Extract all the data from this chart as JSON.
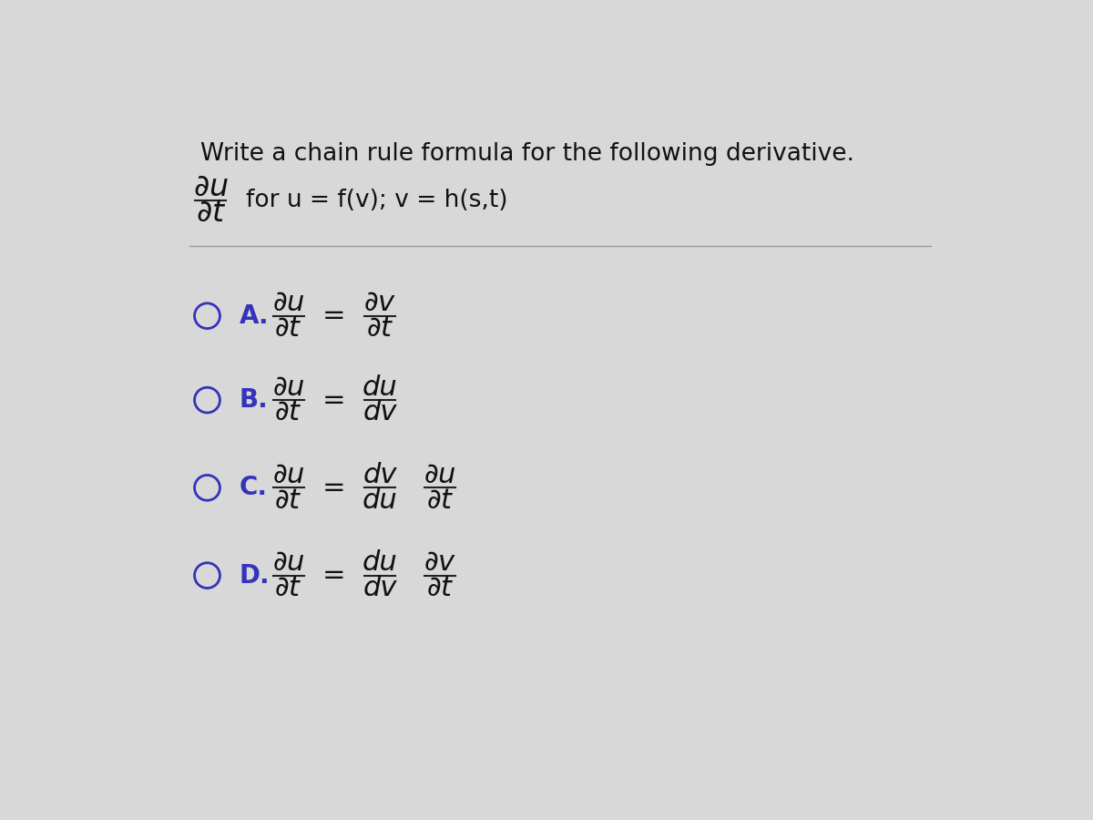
{
  "background_color": "#d8d8d8",
  "title": "Write a chain rule formula for the following derivative.",
  "title_fontsize": 19,
  "title_color": "#111111",
  "formula_color": "#111111",
  "circle_color": "#3333bb",
  "letter_color": "#3333bb",
  "options": [
    {
      "letter": "A",
      "lhs_num": "∂u",
      "lhs_den": "∂t",
      "rhs_parts": [
        {
          "num": "∂v",
          "den": "∂t"
        }
      ]
    },
    {
      "letter": "B",
      "lhs_num": "∂u",
      "lhs_den": "∂t",
      "rhs_parts": [
        {
          "num": "du",
          "den": "dv"
        }
      ]
    },
    {
      "letter": "C",
      "lhs_num": "∂u",
      "lhs_den": "∂t",
      "rhs_parts": [
        {
          "num": "dv",
          "den": "du"
        },
        {
          "num": "∂u",
          "den": "∂t"
        }
      ]
    },
    {
      "letter": "D",
      "lhs_num": "∂u",
      "lhs_den": "∂t",
      "rhs_parts": [
        {
          "num": "du",
          "den": "dv"
        },
        {
          "num": "∂v",
          "den": "∂t"
        }
      ]
    }
  ]
}
